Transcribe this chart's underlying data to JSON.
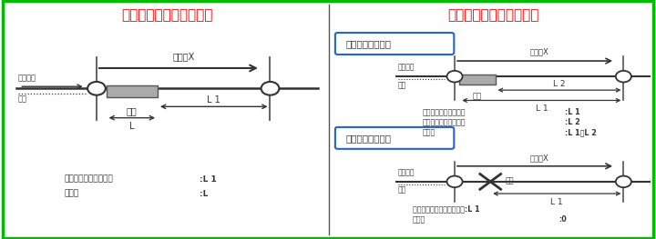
{
  "left_title": "渋滞情報の表現の模式図",
  "right_title": "規制情報の表現の模式図",
  "title_color": "#ff0000",
  "title_fontsize": 11,
  "border_color": "#00bb00",
  "background_color": "#ffffff",
  "left_labels": {
    "direction": "通行方向",
    "road": "道路",
    "link": "リンクX",
    "jam": "渋滞",
    "L1": "L 1",
    "L": "L",
    "legend1": "リンク終端からの距離",
    "legend1_val": ":L 1",
    "legend2": "渋滞長",
    "legend2_val": ":L"
  },
  "right_top_box_label": "・線の規制の場合",
  "right_top": {
    "direction": "通行方向",
    "road": "道路",
    "link": "リンクX",
    "jam": "事象",
    "L1": "L 1",
    "L2": "L 2",
    "legend1": "リンク終端からの距離",
    "legend1_val": ":L 1",
    "legend2": "リンク終端からの距離",
    "legend2_val": ":L 2",
    "legend3": "規制長",
    "legend3_val": ":L 1－L 2"
  },
  "right_bot_box_label": "・点の規制の場合",
  "right_bot": {
    "direction": "通行方向",
    "road": "道路",
    "link": "リンクX",
    "jam": "事象",
    "L1": "L 1",
    "legend1": "結点リンク終端からの距離:L 1",
    "legend2": "規制長",
    "legend2_val": ":0"
  }
}
